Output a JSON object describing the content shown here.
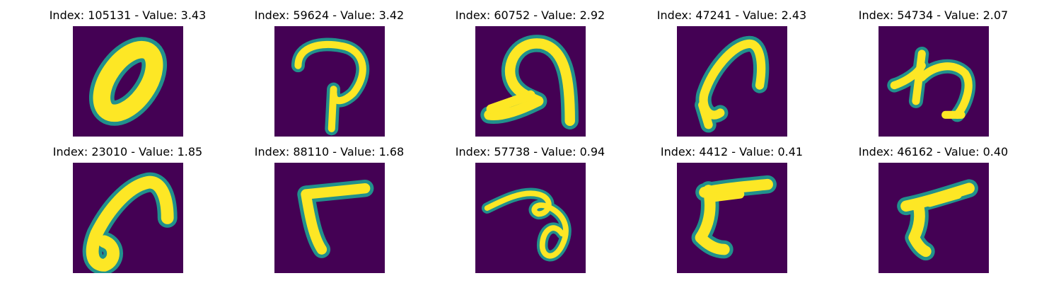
{
  "colors": {
    "background": "#440154",
    "edge": "#21918c",
    "stroke": "#fde725"
  },
  "panels": [
    {
      "title": "Index: 105131 - Value: 3.43",
      "index": 105131,
      "value": 3.43
    },
    {
      "title": "Index: 59624 - Value: 3.42",
      "index": 59624,
      "value": 3.42
    },
    {
      "title": "Index: 60752 - Value: 2.92",
      "index": 60752,
      "value": 2.92
    },
    {
      "title": "Index: 47241 - Value: 2.43",
      "index": 47241,
      "value": 2.43
    },
    {
      "title": "Index: 54734 - Value: 2.07",
      "index": 54734,
      "value": 2.07
    },
    {
      "title": "Index: 23010 - Value: 1.85",
      "index": 23010,
      "value": 1.85
    },
    {
      "title": "Index: 88110 - Value: 1.68",
      "index": 88110,
      "value": 1.68
    },
    {
      "title": "Index: 57738 - Value: 0.94",
      "index": 57738,
      "value": 0.94
    },
    {
      "title": "Index: 4412 - Value: 0.41",
      "index": 4412,
      "value": 0.41
    },
    {
      "title": "Index: 46162 - Value: 0.40",
      "index": 46162,
      "value": 0.4
    }
  ]
}
